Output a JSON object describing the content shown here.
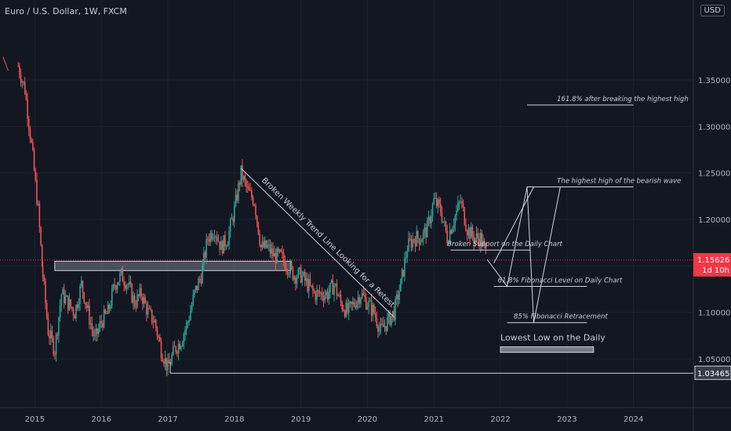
{
  "header": {
    "title": "Euro / U.S. Dollar, 1W, FXCM",
    "currency": "USD"
  },
  "colors": {
    "bg": "#131722",
    "up": "#26a69a",
    "down": "#ef5350",
    "price_tag": "#f23645",
    "grid": "#1e222d",
    "axis_text": "#b2b5be"
  },
  "chart_data": {
    "type": "candlestick",
    "ylim": [
      1.0,
      1.42
    ],
    "x_range": [
      "2014-06",
      "2024-12"
    ],
    "y_ticks": [
      "1.35000",
      "1.30000",
      "1.25000",
      "1.20000",
      "1.15000",
      "1.10000",
      "1.05000"
    ],
    "y_tick_values": [
      1.35,
      1.3,
      1.25,
      1.2,
      1.15,
      1.1,
      1.05
    ],
    "x_ticks": [
      "2015",
      "2016",
      "2017",
      "2018",
      "2019",
      "2020",
      "2021",
      "2022",
      "2023",
      "2024"
    ],
    "x_tick_dates": [
      2015.0,
      2016.0,
      2017.0,
      2018.0,
      2019.0,
      2020.0,
      2021.0,
      2022.0,
      2023.0,
      2024.0
    ],
    "current_price": {
      "value": "1.15626",
      "countdown": "1d 10h",
      "level": 1.15626
    },
    "low_level": {
      "value": "1.03465",
      "level": 1.03465,
      "from": 2017.0,
      "to": 2025.0
    },
    "price_path": [
      [
        2014.75,
        1.365
      ],
      [
        2014.85,
        1.34
      ],
      [
        2014.95,
        1.28
      ],
      [
        2015.05,
        1.21
      ],
      [
        2015.12,
        1.14
      ],
      [
        2015.2,
        1.08
      ],
      [
        2015.3,
        1.06
      ],
      [
        2015.4,
        1.12
      ],
      [
        2015.5,
        1.11
      ],
      [
        2015.6,
        1.1
      ],
      [
        2015.7,
        1.13
      ],
      [
        2015.8,
        1.1
      ],
      [
        2015.9,
        1.07
      ],
      [
        2016.0,
        1.09
      ],
      [
        2016.1,
        1.1
      ],
      [
        2016.2,
        1.13
      ],
      [
        2016.3,
        1.14
      ],
      [
        2016.4,
        1.13
      ],
      [
        2016.5,
        1.11
      ],
      [
        2016.6,
        1.12
      ],
      [
        2016.7,
        1.1
      ],
      [
        2016.8,
        1.09
      ],
      [
        2016.9,
        1.06
      ],
      [
        2017.0,
        1.04
      ],
      [
        2017.1,
        1.06
      ],
      [
        2017.2,
        1.07
      ],
      [
        2017.3,
        1.09
      ],
      [
        2017.4,
        1.12
      ],
      [
        2017.5,
        1.14
      ],
      [
        2017.6,
        1.18
      ],
      [
        2017.7,
        1.19
      ],
      [
        2017.8,
        1.17
      ],
      [
        2017.9,
        1.18
      ],
      [
        2018.0,
        1.21
      ],
      [
        2018.1,
        1.25
      ],
      [
        2018.2,
        1.23
      ],
      [
        2018.3,
        1.22
      ],
      [
        2018.4,
        1.17
      ],
      [
        2018.5,
        1.17
      ],
      [
        2018.6,
        1.16
      ],
      [
        2018.7,
        1.16
      ],
      [
        2018.8,
        1.15
      ],
      [
        2018.9,
        1.14
      ],
      [
        2019.0,
        1.14
      ],
      [
        2019.1,
        1.13
      ],
      [
        2019.2,
        1.12
      ],
      [
        2019.3,
        1.12
      ],
      [
        2019.4,
        1.12
      ],
      [
        2019.5,
        1.13
      ],
      [
        2019.6,
        1.11
      ],
      [
        2019.7,
        1.1
      ],
      [
        2019.8,
        1.11
      ],
      [
        2019.9,
        1.12
      ],
      [
        2020.0,
        1.11
      ],
      [
        2020.1,
        1.1
      ],
      [
        2020.2,
        1.08
      ],
      [
        2020.3,
        1.09
      ],
      [
        2020.4,
        1.1
      ],
      [
        2020.5,
        1.13
      ],
      [
        2020.6,
        1.17
      ],
      [
        2020.7,
        1.18
      ],
      [
        2020.8,
        1.18
      ],
      [
        2020.9,
        1.19
      ],
      [
        2021.0,
        1.22
      ],
      [
        2021.1,
        1.21
      ],
      [
        2021.2,
        1.18
      ],
      [
        2021.3,
        1.2
      ],
      [
        2021.4,
        1.22
      ],
      [
        2021.5,
        1.19
      ],
      [
        2021.6,
        1.18
      ],
      [
        2021.7,
        1.18
      ],
      [
        2021.8,
        1.16
      ]
    ],
    "annotations": {
      "trend_line_label": "Broken Weekly Trend Line Looking for a Retest",
      "fib_161": "161.8% after breaking the highest high",
      "highest_high": "The highest high of the bearish wave",
      "broken_support": "Broken Support on the Daily Chart",
      "fib_618": "61.8% Fibonacci Level on Daily Chart",
      "fib_85": "85% Fibonacci Retracement",
      "lowest_low": "Lowest Low on the Daily"
    },
    "levels": {
      "fib_161": 1.323,
      "highest_high": 1.235,
      "broken_support": 1.167,
      "fib_618": 1.128,
      "fib_85": 1.089,
      "lowest_low_zone": [
        1.057,
        1.063
      ],
      "weekly_zone": [
        1.145,
        1.155
      ]
    }
  }
}
